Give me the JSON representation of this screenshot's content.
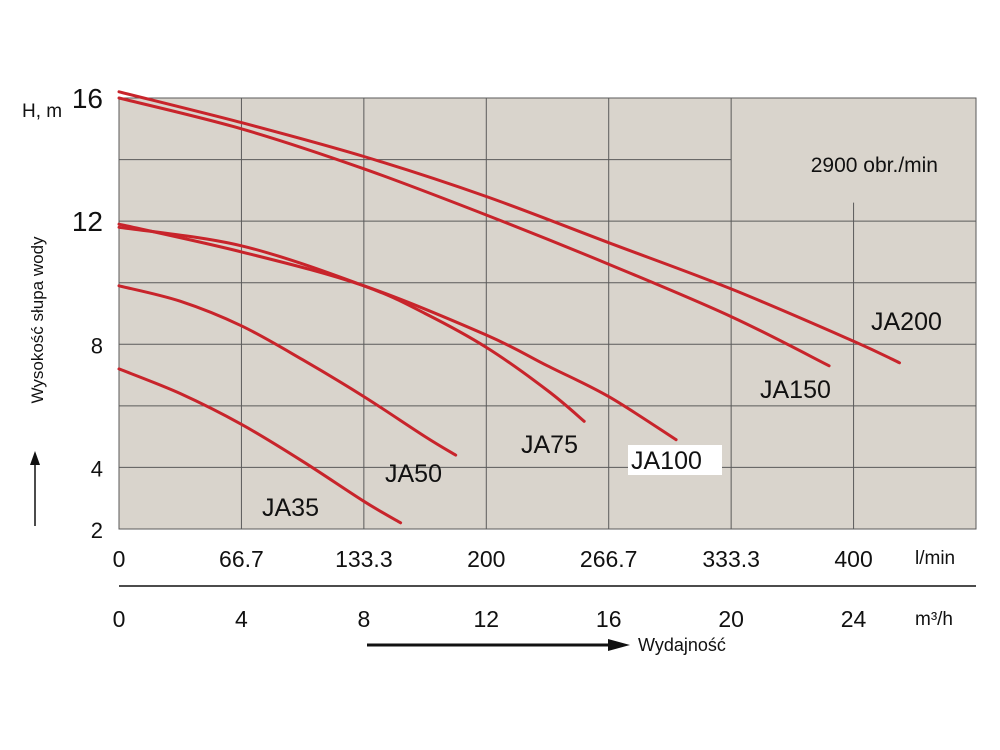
{
  "chart_data": {
    "type": "line",
    "ylabel": "Wysokość słupa wody",
    "yunit": "H, m",
    "xlabel": "Wydajność",
    "x_primary_unit": "l/min",
    "x_secondary_unit": "m³/h",
    "annotation": "2900 obr./min",
    "xlim": [
      0,
      28
    ],
    "ylim": [
      2,
      16
    ],
    "y_ticks": [
      16,
      12,
      8,
      4,
      2
    ],
    "x_ticks_lmin": [
      "0",
      "66.7",
      "133.3",
      "200",
      "266.7",
      "333.3",
      "400"
    ],
    "x_ticks_m3h": [
      "0",
      "4",
      "8",
      "12",
      "16",
      "20",
      "24"
    ],
    "grid": true,
    "series": [
      {
        "name": "JA35",
        "x": [
          0,
          2,
          4,
          6,
          8,
          9.2
        ],
        "y": [
          7.2,
          6.4,
          5.4,
          4.2,
          2.9,
          2.2
        ]
      },
      {
        "name": "JA50",
        "x": [
          0,
          2,
          4,
          6,
          8,
          10,
          11
        ],
        "y": [
          9.9,
          9.4,
          8.6,
          7.5,
          6.3,
          5.0,
          4.4
        ]
      },
      {
        "name": "JA75",
        "x": [
          0,
          4,
          8,
          10,
          12,
          14,
          15.2
        ],
        "y": [
          11.8,
          11.2,
          9.9,
          9.0,
          7.9,
          6.5,
          5.5
        ]
      },
      {
        "name": "JA100",
        "x": [
          0,
          4,
          8,
          12,
          14,
          16,
          18.2
        ],
        "y": [
          11.9,
          11.0,
          9.9,
          8.3,
          7.3,
          6.3,
          4.9
        ]
      },
      {
        "name": "JA150",
        "x": [
          0,
          4,
          8,
          12,
          16,
          20,
          23.2
        ],
        "y": [
          16.0,
          15.0,
          13.7,
          12.2,
          10.6,
          8.9,
          7.3
        ]
      },
      {
        "name": "JA200",
        "x": [
          0,
          4,
          8,
          12,
          16,
          20,
          24,
          25.5
        ],
        "y": [
          16.2,
          15.2,
          14.1,
          12.8,
          11.3,
          9.8,
          8.1,
          7.4
        ]
      }
    ]
  }
}
